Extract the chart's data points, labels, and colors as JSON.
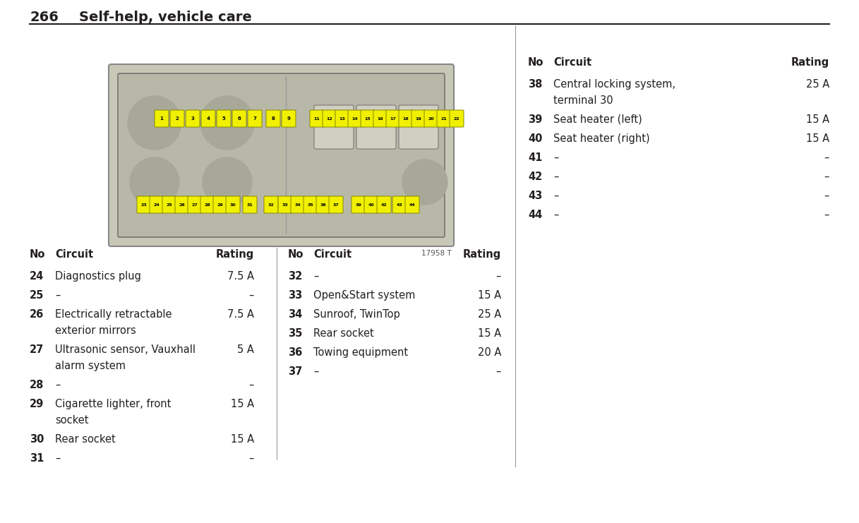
{
  "page_number": "266",
  "page_title": "Self-help, vehicle care",
  "bg_color": "#ffffff",
  "text_color": "#231f20",
  "image_label": "17958 T",
  "col1_header": [
    "No",
    "Circuit",
    "Rating"
  ],
  "col1_rows": [
    [
      "24",
      "Diagnostics plug",
      "7.5 A"
    ],
    [
      "25",
      "–",
      "–"
    ],
    [
      "26",
      "Electrically retractable\nexterior mirrors",
      "7.5 A"
    ],
    [
      "27",
      "Ultrasonic sensor, Vauxhall\nalarm system",
      "5 A"
    ],
    [
      "28",
      "–",
      "–"
    ],
    [
      "29",
      "Cigarette lighter, front\nsocket",
      "15 A"
    ],
    [
      "30",
      "Rear socket",
      "15 A"
    ],
    [
      "31",
      "–",
      "–"
    ]
  ],
  "col2_header": [
    "No",
    "Circuit",
    "Rating"
  ],
  "col2_rows": [
    [
      "32",
      "–",
      "–"
    ],
    [
      "33",
      "Open&Start system",
      "15 A"
    ],
    [
      "34",
      "Sunroof, TwinTop",
      "25 A"
    ],
    [
      "35",
      "Rear socket",
      "15 A"
    ],
    [
      "36",
      "Towing equipment",
      "20 A"
    ],
    [
      "37",
      "–",
      "–"
    ]
  ],
  "col3_header": [
    "No",
    "Circuit",
    "Rating"
  ],
  "col3_rows": [
    [
      "38",
      "Central locking system,\nterminal 30",
      "25 A"
    ],
    [
      "39",
      "Seat heater (left)",
      "15 A"
    ],
    [
      "40",
      "Seat heater (right)",
      "15 A"
    ],
    [
      "41",
      "–",
      "–"
    ],
    [
      "42",
      "–",
      "–"
    ],
    [
      "43",
      "–",
      "–"
    ],
    [
      "44",
      "–",
      "–"
    ]
  ],
  "fuse_yellow": "#f0f000",
  "fuse_border": "#888800",
  "box_bg": "#c8c8b8",
  "box_inner": "#b8b8a8",
  "relay_bg": "#d0d0c0",
  "circle_color": "#a8a898",
  "divider_color": "#999999",
  "label_color": "#555555"
}
